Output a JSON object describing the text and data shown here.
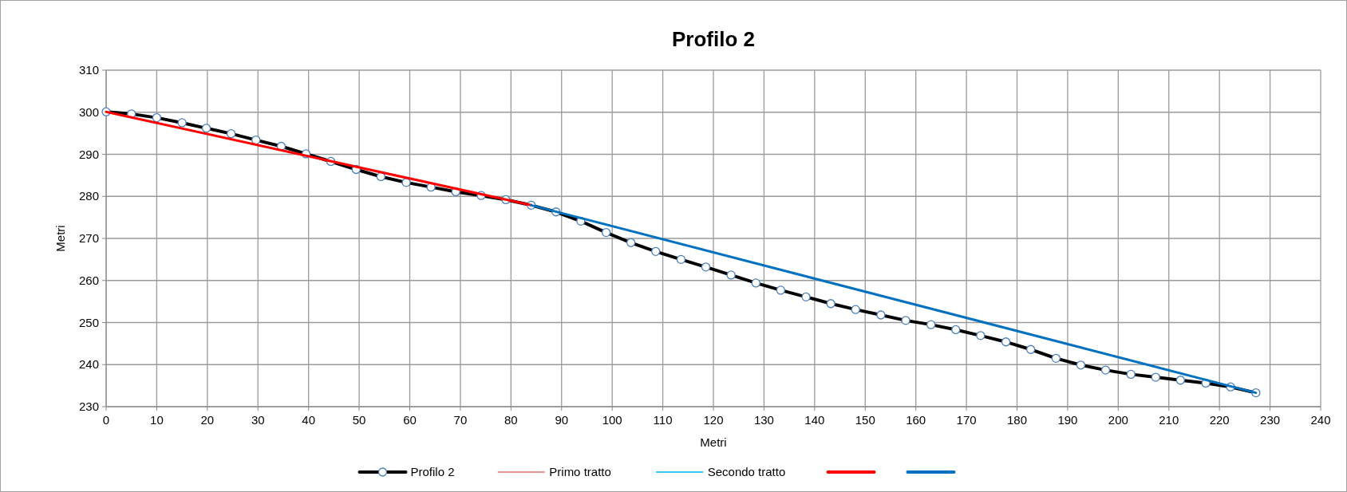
{
  "chart_data": {
    "type": "line",
    "title": "Profilo 2",
    "xlabel": "Metri",
    "ylabel": "Metri",
    "xlim": [
      0,
      240
    ],
    "xticks": [
      0,
      10,
      20,
      30,
      40,
      50,
      60,
      70,
      80,
      90,
      100,
      110,
      120,
      130,
      140,
      150,
      160,
      170,
      180,
      190,
      200,
      210,
      220,
      230,
      240
    ],
    "ylim": [
      230,
      310
    ],
    "yticks": [
      230,
      240,
      250,
      260,
      270,
      280,
      290,
      300,
      310
    ],
    "grid": true,
    "legend": "bottom",
    "series": [
      {
        "name": "Profilo 2",
        "color": "#000000",
        "marker": "circle",
        "x": [
          0,
          5,
          10,
          15,
          19.8,
          24.7,
          29.6,
          34.6,
          39.5,
          44.4,
          49.4,
          54.3,
          59.3,
          64.2,
          69.1,
          74.1,
          79,
          84,
          88.9,
          93.8,
          98.8,
          103.7,
          108.6,
          113.6,
          118.5,
          123.5,
          128.4,
          133.3,
          138.3,
          143.2,
          148.1,
          153.1,
          158,
          163,
          167.9,
          172.8,
          177.8,
          182.7,
          187.7,
          192.6,
          197.5,
          202.5,
          207.4,
          212.3,
          217.3,
          222.2,
          227.2
        ],
        "values": [
          300.1,
          299.6,
          298.7,
          297.5,
          296.2,
          294.9,
          293.4,
          291.9,
          290.1,
          288.3,
          286.4,
          284.7,
          283.3,
          282.2,
          281.1,
          280.2,
          279.2,
          277.9,
          276.3,
          274.1,
          271.4,
          269,
          266.9,
          265,
          263.2,
          261.3,
          259.4,
          257.7,
          256.1,
          254.5,
          253.1,
          251.8,
          250.5,
          249.5,
          248.3,
          246.9,
          245.4,
          243.6,
          241.5,
          239.9,
          238.7,
          237.7,
          237,
          236.3,
          235.6,
          234.7,
          233.3
        ]
      },
      {
        "name": "Primo tratto",
        "color": "#e07070",
        "marker": "none"
      },
      {
        "name": "Secondo tratto",
        "color": "#00b0f0",
        "marker": "none"
      },
      {
        "color": "#ff0000",
        "marker": "none",
        "x": [
          0,
          84
        ],
        "values": [
          300.1,
          277.9
        ]
      },
      {
        "color": "#0070c0",
        "marker": "none",
        "x": [
          84,
          227.2
        ],
        "values": [
          277.9,
          233.3
        ]
      }
    ]
  }
}
